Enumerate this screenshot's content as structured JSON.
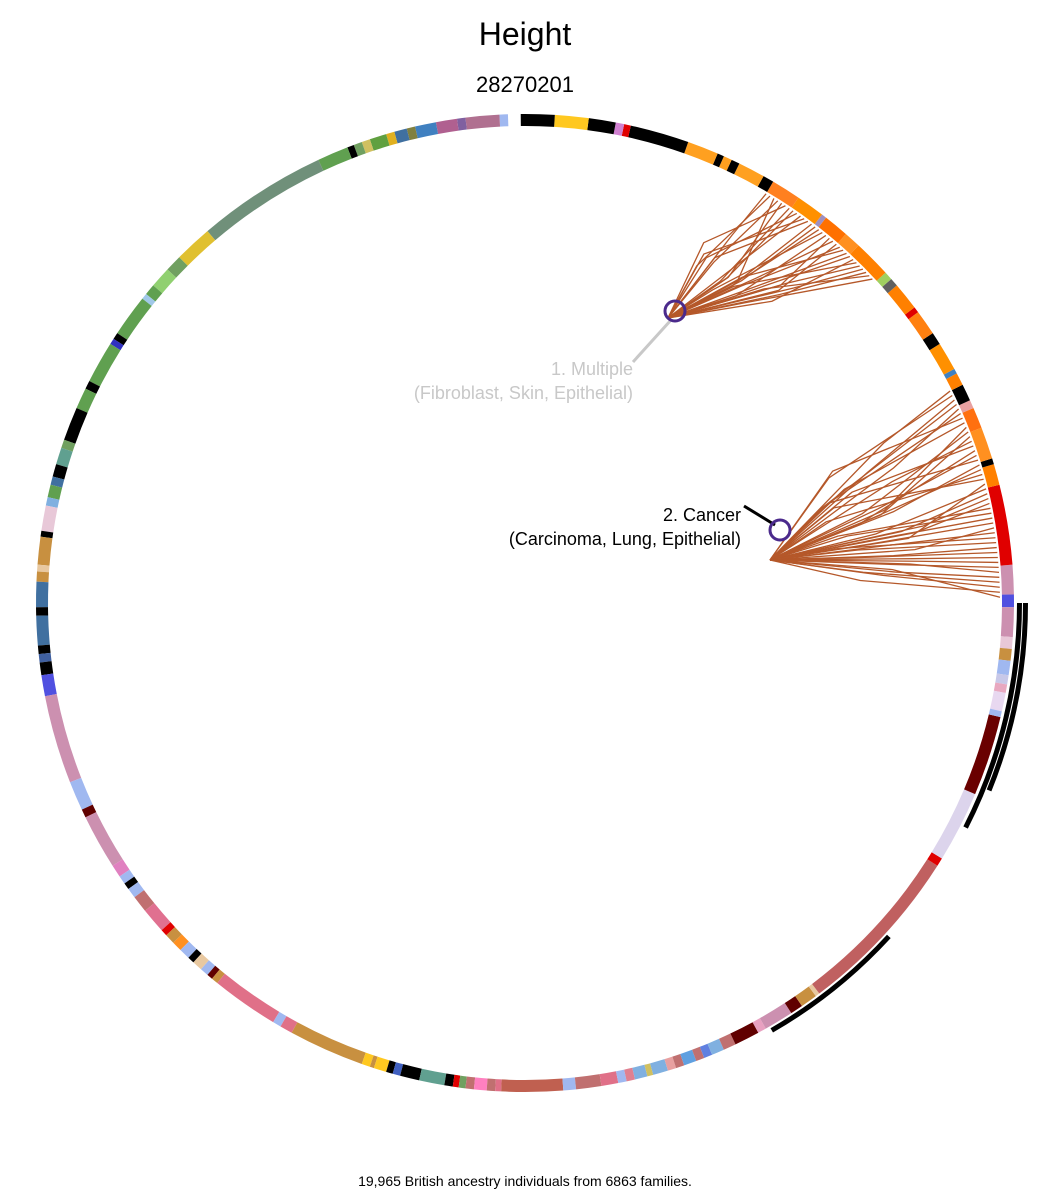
{
  "header": {
    "title": "Height",
    "subtitle": "28270201"
  },
  "footer": {
    "caption": "19,965 British ancestry individuals from 6863 families."
  },
  "annotations": [
    {
      "line1": "1. Multiple",
      "line2": "(Fibroblast, Skin, Epithelial)",
      "color": "#c8c8c8"
    },
    {
      "line1": "2. Cancer",
      "line2": "(Carcinoma, Lung, Epithelial)",
      "color": "#000000"
    }
  ],
  "colors": {
    "tree_branch": "#b5582a",
    "node_marker": "#4b2a8c",
    "highlight_arc": "#000000"
  },
  "ring_segments": [
    [
      "#cc90b0",
      91.0,
      94.5
    ],
    [
      "#5050e0",
      89.5,
      91.0
    ],
    [
      "#cc90b0",
      86.0,
      89.5
    ],
    [
      "#e8c8d8",
      84.6,
      86.0
    ],
    [
      "#c89040",
      83.2,
      84.6
    ],
    [
      "#a0b8f0",
      81.5,
      83.2
    ],
    [
      "#c8c8e8",
      80.4,
      81.5
    ],
    [
      "#e8a8c0",
      79.4,
      80.4
    ],
    [
      "#e8d8f0",
      77.2,
      79.4
    ],
    [
      "#e00000",
      94.5,
      104.0
    ],
    [
      "#ff8000",
      104.0,
      106.5
    ],
    [
      "#000000",
      106.5,
      107.2
    ],
    [
      "#ff9020",
      107.2,
      111.0
    ],
    [
      "#ff7010",
      111.0,
      113.5
    ],
    [
      "#e8a0a0",
      113.5,
      114.5
    ],
    [
      "#000000",
      114.5,
      116.5
    ],
    [
      "#ff8000",
      116.5,
      118.0
    ],
    [
      "#4080c0",
      118.0,
      118.6
    ],
    [
      "#ff9000",
      118.6,
      122.0
    ],
    [
      "#000000",
      122.0,
      123.5
    ],
    [
      "#ff8010",
      123.5,
      126.5
    ],
    [
      "#e00000",
      126.5,
      127.2
    ],
    [
      "#ff8000",
      127.2,
      130.5
    ],
    [
      "#606060",
      130.5,
      131.5
    ],
    [
      "#a0d060",
      131.5,
      132.5
    ],
    [
      "#ff8000",
      132.5,
      137.0
    ],
    [
      "#ff9020",
      137.0,
      139.0
    ],
    [
      "#ff7000",
      139.0,
      142.0
    ],
    [
      "#a090c0",
      142.0,
      142.6
    ],
    [
      "#ff9000",
      142.6,
      146.0
    ],
    [
      "#ff8020",
      146.0,
      149.5
    ],
    [
      "#000000",
      149.5,
      150.8
    ],
    [
      "#ffa020",
      150.8,
      154.0
    ],
    [
      "#000000",
      154.0,
      155.0
    ],
    [
      "#ffa020",
      155.0,
      156.0
    ],
    [
      "#000000",
      156.0,
      156.8
    ],
    [
      "#ffa020",
      156.8,
      160.5
    ],
    [
      "#000000",
      160.5,
      167.5
    ],
    [
      "#e00000",
      167.5,
      168.3
    ],
    [
      "#d080d0",
      168.3,
      169.3
    ],
    [
      "#000000",
      169.3,
      172.5
    ],
    [
      "#ffc820",
      172.5,
      176.5
    ],
    [
      "#000000",
      176.5,
      180.5
    ],
    [
      "#a0b8f0",
      182.0,
      183.0
    ],
    [
      "#b07090",
      183.0,
      187.0
    ],
    [
      "#8060a0",
      187.0,
      188.0
    ],
    [
      "#b06090",
      188.0,
      190.5
    ],
    [
      "#4080c0",
      190.5,
      193.0
    ],
    [
      "#808040",
      193.0,
      194.0
    ],
    [
      "#4070a0",
      194.0,
      195.5
    ],
    [
      "#e0b020",
      195.5,
      196.5
    ],
    [
      "#60a040",
      196.5,
      198.5
    ],
    [
      "#d0c060",
      198.5,
      199.5
    ],
    [
      "#70a060",
      199.5,
      200.5
    ],
    [
      "#000000",
      200.5,
      201.3
    ],
    [
      "#60a050",
      201.3,
      205.0
    ],
    [
      "#70907a",
      205.0,
      220.5
    ],
    [
      "#e0c030",
      220.5,
      225.0
    ],
    [
      "#70a060",
      225.0,
      227.0
    ],
    [
      "#90d070",
      227.0,
      229.5
    ],
    [
      "#60a050",
      229.5,
      230.8
    ],
    [
      "#a0c8e8",
      230.8,
      231.5
    ],
    [
      "#60a050",
      231.5,
      236.5
    ],
    [
      "#000000",
      236.5,
      237.3
    ],
    [
      "#3030c0",
      237.3,
      238.0
    ],
    [
      "#60a050",
      238.0,
      243.0
    ],
    [
      "#000000",
      243.0,
      244.0
    ],
    [
      "#60a050",
      244.0,
      246.5
    ],
    [
      "#000000",
      246.5,
      250.5
    ],
    [
      "#70a060",
      250.5,
      251.5
    ],
    [
      "#60a090",
      251.5,
      253.5
    ],
    [
      "#000000",
      253.5,
      255.0
    ],
    [
      "#4070a0",
      255.0,
      256.0
    ],
    [
      "#60a050",
      256.0,
      257.5
    ],
    [
      "#80b0e0",
      257.5,
      258.5
    ],
    [
      "#e8c8d8",
      258.5,
      261.5
    ],
    [
      "#000000",
      261.5,
      262.2
    ],
    [
      "#c89040",
      262.2,
      265.5
    ],
    [
      "#e8c8a0",
      265.5,
      266.3
    ],
    [
      "#c89040",
      266.3,
      267.5
    ],
    [
      "#4070a0",
      267.5,
      270.5
    ],
    [
      "#000000",
      270.5,
      271.5
    ],
    [
      "#4070a0",
      271.5,
      275.0
    ],
    [
      "#000000",
      275.0,
      276.0
    ],
    [
      "#4060a0",
      276.0,
      277.0
    ],
    [
      "#000000",
      277.0,
      278.5
    ],
    [
      "#5050e0",
      278.5,
      281.0
    ],
    [
      "#cc90b0",
      281.0,
      291.5
    ],
    [
      "#a0b8f0",
      291.5,
      295.0
    ],
    [
      "#600000",
      295.0,
      296.0
    ],
    [
      "#cc90b0",
      296.0,
      302.5
    ],
    [
      "#e080c0",
      302.5,
      304.0
    ],
    [
      "#a0b8f0",
      304.0,
      305.0
    ],
    [
      "#000000",
      305.0,
      305.8
    ],
    [
      "#a0b8f0",
      305.8,
      307.0
    ],
    [
      "#c07070",
      307.0,
      309.0
    ],
    [
      "#e07090",
      309.0,
      312.0
    ],
    [
      "#e00000",
      312.0,
      312.8
    ],
    [
      "#c89040",
      312.8,
      314.0
    ],
    [
      "#ff9020",
      314.0,
      315.2
    ],
    [
      "#a0b8f0",
      315.2,
      316.5
    ],
    [
      "#000000",
      316.5,
      317.3
    ],
    [
      "#e8c8a0",
      317.3,
      318.5
    ],
    [
      "#a0b8f0",
      318.5,
      319.5
    ],
    [
      "#600000",
      319.5,
      320.2
    ],
    [
      "#c89040",
      320.2,
      321.0
    ],
    [
      "#e07088",
      321.0,
      329.0
    ],
    [
      "#a0b8f0",
      329.0,
      330.0
    ],
    [
      "#e07088",
      330.0,
      331.5
    ],
    [
      "#c89040",
      331.5,
      340.5
    ],
    [
      "#ffc820",
      340.5,
      341.5
    ],
    [
      "#c89040",
      341.5,
      342.0
    ],
    [
      "#ffc820",
      342.0,
      343.5
    ],
    [
      "#000000",
      343.5,
      344.3
    ],
    [
      "#4060c0",
      344.3,
      345.2
    ],
    [
      "#000000",
      345.2,
      347.5
    ],
    [
      "#60a090",
      347.5,
      350.5
    ],
    [
      "#000000",
      350.5,
      351.5
    ],
    [
      "#e00000",
      351.5,
      352.2
    ],
    [
      "#70a060",
      352.2,
      353.0
    ],
    [
      "#c07070",
      353.0,
      354.0
    ],
    [
      "#ff80c0",
      354.0,
      355.5
    ],
    [
      "#c07070",
      355.5,
      356.5
    ],
    [
      "#e07088",
      356.5,
      357.2
    ],
    [
      "#c06050",
      357.2,
      364.5
    ],
    [
      "#a0b8f0",
      364.5,
      366.0
    ],
    [
      "#c07070",
      366.0,
      369.0
    ],
    [
      "#e07088",
      369.0,
      371.0
    ],
    [
      "#a0b8f0",
      371.0,
      372.0
    ],
    [
      "#e08090",
      372.0,
      373.0
    ],
    [
      "#80b0e0",
      373.0,
      374.5
    ],
    [
      "#d0c060",
      374.5,
      375.2
    ],
    [
      "#80b0e0",
      375.2,
      377.0
    ],
    [
      "#e8a0a0",
      377.0,
      378.0
    ],
    [
      "#c07070",
      378.0,
      379.0
    ],
    [
      "#60a0e0",
      379.0,
      380.5
    ],
    [
      "#c07070",
      380.5,
      381.5
    ],
    [
      "#6080e0",
      381.5,
      382.5
    ],
    [
      "#80b0e0",
      382.5,
      384.0
    ],
    [
      "#c07070",
      384.0,
      385.5
    ],
    [
      "#600000",
      385.5,
      388.5
    ],
    [
      "#e8a0c0",
      388.5,
      389.5
    ],
    [
      "#cc90b0",
      389.5,
      393.0
    ],
    [
      "#600000",
      393.0,
      394.5
    ],
    [
      "#c89040",
      394.5,
      396.5
    ],
    [
      "#e8c8a0",
      396.5,
      397.0
    ],
    [
      "#c06060",
      397.0,
      417.5
    ],
    [
      "#e00000",
      417.5,
      418.5
    ],
    [
      "#dcd4ec",
      418.5,
      427.0
    ],
    [
      "#6a0000",
      427.0,
      436.5
    ],
    [
      "#a0b8f0",
      436.5,
      437.2
    ],
    [
      "#6a0000",
      437.2,
      437.2
    ]
  ]
}
